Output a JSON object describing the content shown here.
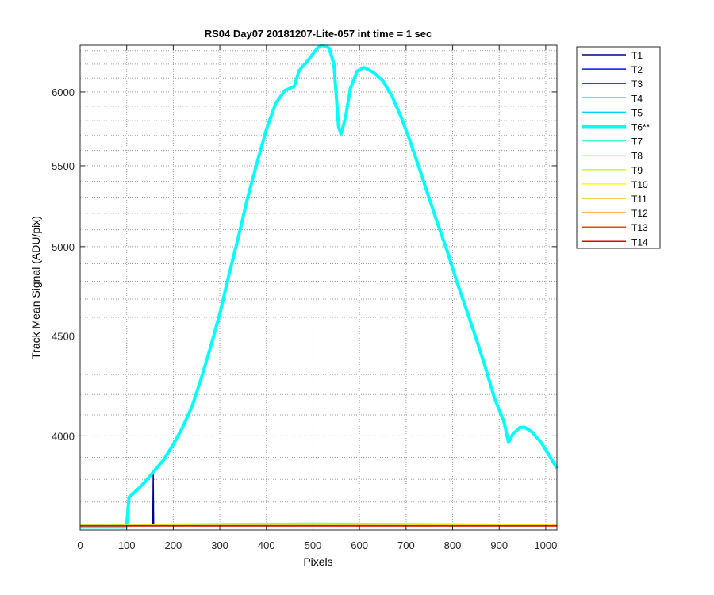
{
  "chart_data": {
    "type": "line",
    "title": "RS04 Day07 20181207-Lite-057 int time = 1 sec",
    "xlabel": "Pixels",
    "ylabel": "Track Mean Signal (ADU/pix)",
    "xlim": [
      0,
      1024
    ],
    "ylim": [
      3580,
      6340
    ],
    "y_scale": "log",
    "x_ticks": [
      0,
      100,
      200,
      300,
      400,
      500,
      600,
      700,
      800,
      900,
      1000
    ],
    "y_ticks": [
      4000,
      4500,
      5000,
      5500,
      6000
    ],
    "grid": "major and minor, dotted",
    "legend_position": "outside right",
    "series": [
      {
        "name": "T1",
        "color": "#00008f",
        "width": 1.5,
        "points": [
          [
            0,
            3600
          ],
          [
            156,
            3600
          ],
          [
            157,
            3820
          ],
          [
            158,
            3600
          ],
          [
            1024,
            3600
          ]
        ]
      },
      {
        "name": "T2",
        "color": "#0010ff",
        "width": 1.5,
        "points": [
          [
            0,
            3598
          ],
          [
            1024,
            3598
          ]
        ]
      },
      {
        "name": "T3",
        "color": "#0050ff",
        "width": 1.5,
        "points": [
          [
            0,
            3597
          ],
          [
            1024,
            3597
          ]
        ]
      },
      {
        "name": "T4",
        "color": "#0090ff",
        "width": 1.5,
        "points": [
          [
            0,
            3598
          ],
          [
            1024,
            3598
          ]
        ]
      },
      {
        "name": "T5",
        "color": "#00d0ff",
        "width": 1.5,
        "points": [
          [
            0,
            3599
          ],
          [
            1024,
            3599
          ]
        ]
      },
      {
        "name": "T6**",
        "color": "#00ffff",
        "width": 4,
        "points": [
          [
            0,
            3592
          ],
          [
            98,
            3592
          ],
          [
            100,
            3600
          ],
          [
            105,
            3720
          ],
          [
            120,
            3748
          ],
          [
            140,
            3790
          ],
          [
            160,
            3840
          ],
          [
            180,
            3890
          ],
          [
            200,
            3960
          ],
          [
            220,
            4040
          ],
          [
            240,
            4140
          ],
          [
            260,
            4280
          ],
          [
            280,
            4440
          ],
          [
            300,
            4620
          ],
          [
            320,
            4840
          ],
          [
            340,
            5060
          ],
          [
            360,
            5300
          ],
          [
            380,
            5520
          ],
          [
            400,
            5740
          ],
          [
            420,
            5920
          ],
          [
            440,
            6010
          ],
          [
            460,
            6040
          ],
          [
            470,
            6150
          ],
          [
            490,
            6230
          ],
          [
            510,
            6320
          ],
          [
            520,
            6340
          ],
          [
            535,
            6320
          ],
          [
            545,
            6200
          ],
          [
            555,
            5760
          ],
          [
            560,
            5710
          ],
          [
            570,
            5820
          ],
          [
            580,
            6020
          ],
          [
            595,
            6150
          ],
          [
            610,
            6175
          ],
          [
            630,
            6140
          ],
          [
            650,
            6080
          ],
          [
            670,
            5970
          ],
          [
            690,
            5820
          ],
          [
            710,
            5650
          ],
          [
            730,
            5470
          ],
          [
            750,
            5290
          ],
          [
            770,
            5120
          ],
          [
            790,
            4960
          ],
          [
            810,
            4790
          ],
          [
            830,
            4640
          ],
          [
            850,
            4490
          ],
          [
            870,
            4340
          ],
          [
            890,
            4180
          ],
          [
            910,
            4070
          ],
          [
            920,
            3970
          ],
          [
            930,
            4010
          ],
          [
            945,
            4040
          ],
          [
            955,
            4040
          ],
          [
            970,
            4020
          ],
          [
            990,
            3970
          ],
          [
            1010,
            3900
          ],
          [
            1024,
            3850
          ]
        ]
      },
      {
        "name": "T7",
        "color": "#40ffbf",
        "width": 1.5,
        "points": [
          [
            0,
            3600
          ],
          [
            300,
            3605
          ],
          [
            500,
            3606
          ],
          [
            700,
            3605
          ],
          [
            1024,
            3602
          ]
        ]
      },
      {
        "name": "T8",
        "color": "#80ff80",
        "width": 1.5,
        "points": [
          [
            0,
            3601
          ],
          [
            300,
            3607
          ],
          [
            500,
            3609
          ],
          [
            700,
            3607
          ],
          [
            1024,
            3603
          ]
        ]
      },
      {
        "name": "T9",
        "color": "#bfff40",
        "width": 1.5,
        "points": [
          [
            0,
            3600
          ],
          [
            1024,
            3601
          ]
        ]
      },
      {
        "name": "T10",
        "color": "#ffff00",
        "width": 1.5,
        "points": [
          [
            0,
            3599
          ],
          [
            1024,
            3600
          ]
        ]
      },
      {
        "name": "T11",
        "color": "#ffbf00",
        "width": 1.5,
        "points": [
          [
            0,
            3598
          ],
          [
            1024,
            3598
          ]
        ]
      },
      {
        "name": "T12",
        "color": "#ff8000",
        "width": 1.5,
        "points": [
          [
            0,
            3597
          ],
          [
            1024,
            3597
          ]
        ]
      },
      {
        "name": "T13",
        "color": "#ff4000",
        "width": 1.5,
        "points": [
          [
            0,
            3598
          ],
          [
            1024,
            3598
          ]
        ]
      },
      {
        "name": "T14",
        "color": "#e00000",
        "width": 1.5,
        "points": [
          [
            0,
            3597
          ],
          [
            1024,
            3597
          ]
        ]
      }
    ]
  }
}
